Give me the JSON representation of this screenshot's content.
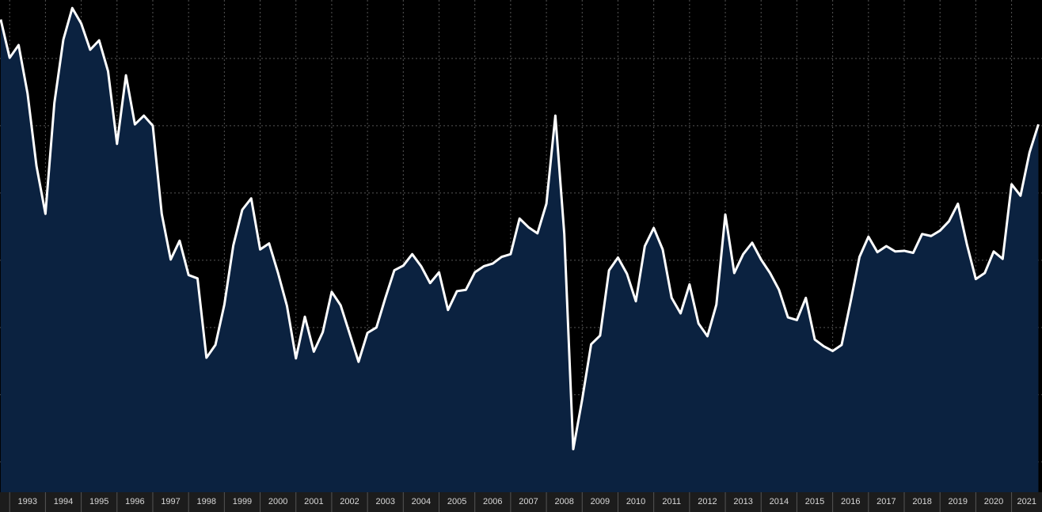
{
  "chart_data": {
    "type": "area",
    "x": [
      1992.75,
      1993,
      1993.25,
      1993.5,
      1993.75,
      1994,
      1994.25,
      1994.5,
      1994.75,
      1995,
      1995.25,
      1995.5,
      1995.75,
      1996,
      1996.25,
      1996.5,
      1996.75,
      1997,
      1997.25,
      1997.5,
      1997.75,
      1998,
      1998.25,
      1998.5,
      1998.75,
      1999,
      1999.25,
      1999.5,
      1999.75,
      2000,
      2000.25,
      2000.5,
      2000.75,
      2001,
      2001.25,
      2001.5,
      2001.75,
      2002,
      2002.25,
      2002.5,
      2002.75,
      2003,
      2003.25,
      2003.5,
      2003.75,
      2004,
      2004.25,
      2004.5,
      2004.75,
      2005,
      2005.25,
      2005.5,
      2005.75,
      2006,
      2006.25,
      2006.5,
      2006.75,
      2007,
      2007.25,
      2007.5,
      2007.75,
      2008,
      2008.25,
      2008.5,
      2008.75,
      2009,
      2009.25,
      2009.5,
      2009.75,
      2010,
      2010.25,
      2010.5,
      2010.75,
      2011,
      2011.25,
      2011.5,
      2011.75,
      2012,
      2012.25,
      2012.5,
      2012.75,
      2013,
      2013.25,
      2013.5,
      2013.75,
      2014,
      2014.25,
      2014.5,
      2014.75,
      2015,
      2015.25,
      2015.5,
      2015.75,
      2016,
      2016.25,
      2016.5,
      2016.75,
      2017,
      2017.25,
      2017.5,
      2017.75,
      2018,
      2018.25,
      2018.5,
      2018.75,
      2019,
      2019.25,
      2019.5,
      2019.75,
      2020,
      2020.25,
      2020.5,
      2020.75,
      2021,
      2021.25,
      2021.5,
      2021.75
    ],
    "values": [
      6.58,
      6.01,
      6.2,
      5.48,
      4.4,
      3.69,
      5.34,
      6.28,
      6.75,
      6.52,
      6.13,
      6.27,
      5.81,
      4.73,
      5.75,
      5.02,
      5.15,
      5.0,
      3.69,
      3.01,
      3.29,
      2.78,
      2.73,
      1.55,
      1.74,
      2.34,
      3.22,
      3.75,
      3.92,
      3.16,
      3.25,
      2.81,
      2.32,
      1.54,
      2.16,
      1.64,
      1.93,
      2.53,
      2.33,
      1.91,
      1.49,
      1.92,
      2.0,
      2.44,
      2.85,
      2.92,
      3.09,
      2.91,
      2.66,
      2.82,
      2.26,
      2.54,
      2.56,
      2.82,
      2.91,
      2.95,
      3.05,
      3.09,
      3.62,
      3.49,
      3.4,
      3.84,
      5.15,
      3.39,
      0.19,
      0.93,
      1.75,
      1.88,
      2.85,
      3.04,
      2.8,
      2.39,
      3.21,
      3.48,
      3.16,
      2.44,
      2.21,
      2.64,
      2.06,
      1.87,
      2.34,
      3.68,
      2.81,
      3.09,
      3.26,
      3.01,
      2.81,
      2.56,
      2.15,
      2.11,
      2.44,
      1.82,
      1.72,
      1.65,
      1.74,
      2.38,
      3.05,
      3.35,
      3.12,
      3.21,
      3.13,
      3.14,
      3.11,
      3.39,
      3.36,
      3.44,
      3.58,
      3.84,
      3.24,
      2.72,
      2.81,
      3.13,
      3.02,
      4.13,
      3.96,
      4.6,
      5.02
    ],
    "color": "#ffffff",
    "fill": "#0b2240",
    "xlim": [
      1992.73,
      2021.85
    ],
    "xticks": [
      1993,
      1994,
      1995,
      1996,
      1997,
      1998,
      1999,
      2000,
      2001,
      2002,
      2003,
      2004,
      2005,
      2006,
      2007,
      2008,
      2009,
      2010,
      2011,
      2012,
      2013,
      2014,
      2015,
      2016,
      2017,
      2018,
      2019,
      2020,
      2021
    ],
    "ylim": [
      -0.45,
      6.87
    ],
    "yticks": [
      0,
      1,
      2,
      3,
      4,
      5,
      6
    ],
    "grid": true
  }
}
